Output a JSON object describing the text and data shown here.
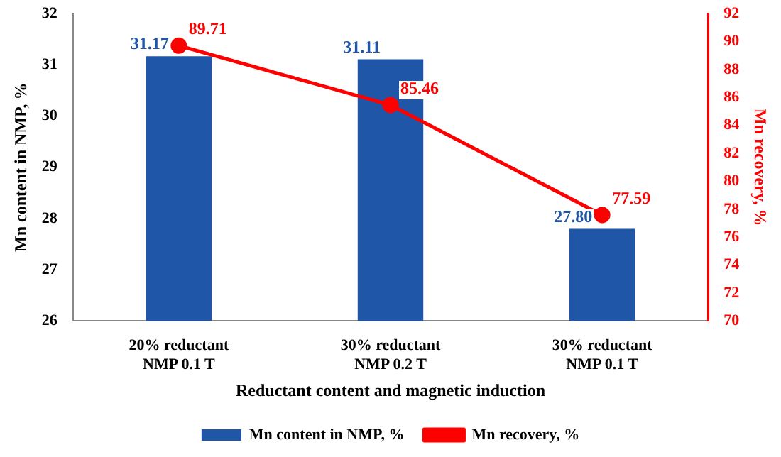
{
  "chart_data": {
    "type": "bar",
    "xlabel": "Reductant content and magnetic induction",
    "ylabel": "Mn content in NMP, %",
    "y2label": "Mn recovery, %",
    "categories": [
      "20% reductant\nNMP 0.1 T",
      "30% reductant\nNMP 0.2 T",
      "30% reductant\nNMP 0.1 T"
    ],
    "series": [
      {
        "name": "Mn content in NMP, %",
        "color": "#1f56a8",
        "values": [
          31.17,
          31.11,
          27.8
        ],
        "value_labels": [
          "31.17",
          "31.11",
          "27.80"
        ]
      },
      {
        "name": "Mn recovery, %",
        "type": "line",
        "axis": "y2",
        "color": "#ff0000",
        "marker": "circle",
        "values": [
          89.71,
          85.46,
          77.59
        ],
        "value_labels": [
          "89.71",
          "85.46",
          "77.59"
        ]
      }
    ],
    "ylim": [
      26,
      32
    ],
    "yticks": [
      26,
      27,
      28,
      29,
      30,
      31,
      32
    ],
    "y2lim": [
      70,
      92
    ],
    "y2ticks": [
      70,
      72,
      74,
      76,
      78,
      80,
      82,
      84,
      86,
      88,
      90,
      92
    ],
    "grid": false,
    "legend": "bottom"
  }
}
